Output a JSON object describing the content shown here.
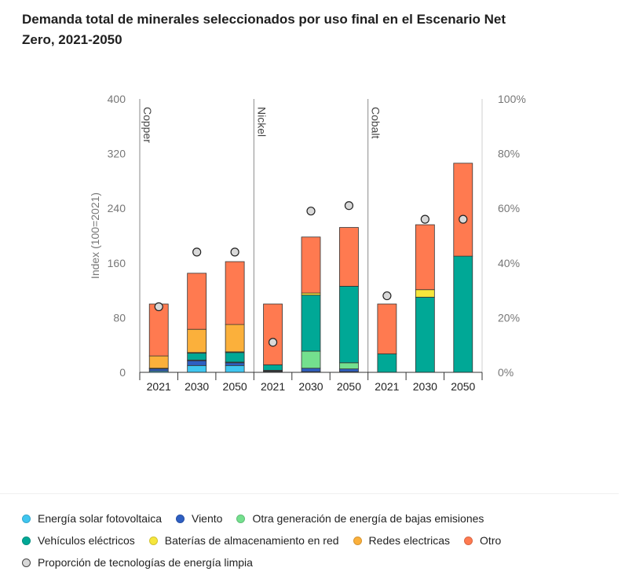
{
  "title": "Demanda total de minerales seleccionados por uso final en el Escenario Net Zero, 2021-2050",
  "colors": {
    "solar": "#3fc6f0",
    "wind": "#2e5fc2",
    "low_emission": "#74e08e",
    "ev": "#00a896",
    "grid_storage": "#f6e63c",
    "networks": "#fbb03b",
    "other": "#ff7a50",
    "share_marker": "#d9d9d9",
    "axis_text": "#777777"
  },
  "chart_data": {
    "type": "bar",
    "stacked": true,
    "ylabel": "Index (100=2021)",
    "ylim": [
      0,
      400
    ],
    "yticks": [
      0,
      80,
      160,
      240,
      320,
      400
    ],
    "y2lim": [
      0,
      100
    ],
    "y2ticks": [
      "0%",
      "20%",
      "40%",
      "60%",
      "80%",
      "100%"
    ],
    "grid": false,
    "legend_position": "bottom",
    "groups": [
      {
        "name": "Copper",
        "categories": [
          "2021",
          "2030",
          "2050"
        ]
      },
      {
        "name": "Nickel",
        "categories": [
          "2021",
          "2030",
          "2050"
        ]
      },
      {
        "name": "Cobalt",
        "categories": [
          "2021",
          "2030",
          "2050"
        ]
      }
    ],
    "categories": [
      "2021",
      "2030",
      "2050",
      "2021",
      "2030",
      "2050",
      "2021",
      "2030",
      "2050"
    ],
    "series": [
      {
        "name": "Energía solar fotovoltaica",
        "color_key": "solar",
        "values": [
          2,
          10,
          10,
          1,
          1,
          1,
          0,
          0,
          0
        ]
      },
      {
        "name": "Viento",
        "color_key": "wind",
        "values": [
          3,
          7,
          4,
          1,
          5,
          4,
          0,
          0,
          0
        ]
      },
      {
        "name": "Otra generación de energía de bajas emisiones",
        "color_key": "low_emission",
        "values": [
          0,
          1,
          1,
          1,
          25,
          9,
          0,
          0,
          0
        ]
      },
      {
        "name": "Vehículos eléctricos",
        "color_key": "ev",
        "values": [
          1,
          10,
          14,
          8,
          82,
          112,
          27,
          110,
          170
        ]
      },
      {
        "name": "Baterías de almacenamiento en red",
        "color_key": "grid_storage",
        "values": [
          0,
          1,
          1,
          0,
          3,
          0,
          0,
          11,
          0
        ]
      },
      {
        "name": "Redes electricas",
        "color_key": "networks",
        "values": [
          18,
          34,
          40,
          0,
          0,
          0,
          0,
          0,
          0
        ]
      },
      {
        "name": "Otro",
        "color_key": "other",
        "values": [
          76,
          82,
          92,
          89,
          82,
          86,
          73,
          95,
          136
        ]
      }
    ],
    "markers": {
      "name": "Proporción de tecnologías de energía limpia",
      "axis": "right",
      "values": [
        24,
        44,
        44,
        11,
        59,
        61,
        28,
        56,
        56
      ]
    }
  },
  "legend": {
    "rows": [
      [
        {
          "label": "Energía solar fotovoltaica",
          "color_key": "solar"
        },
        {
          "label": "Viento",
          "color_key": "wind"
        },
        {
          "label": "Otra generación de energía de bajas emisiones",
          "color_key": "low_emission"
        }
      ],
      [
        {
          "label": "Vehículos eléctricos",
          "color_key": "ev"
        },
        {
          "label": "Baterías de almacenamiento en red",
          "color_key": "grid_storage"
        },
        {
          "label": "Redes electricas",
          "color_key": "networks"
        },
        {
          "label": "Otro",
          "color_key": "other"
        }
      ],
      [
        {
          "label": "Proporción de tecnologías de energía limpia",
          "color_key": "share_marker"
        }
      ]
    ]
  }
}
